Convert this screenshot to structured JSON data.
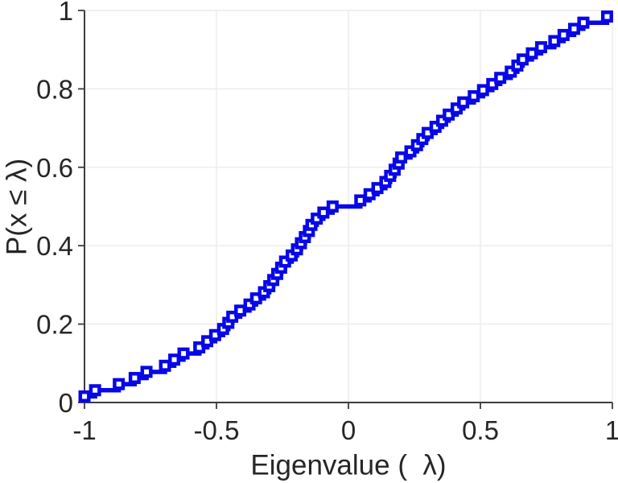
{
  "figure": {
    "background": "#ffffff"
  },
  "style": {
    "line_color": "#0707e8",
    "marker_face_color": "#ffffff",
    "grid_color": "#ebebeb",
    "axis_color": "#3c3c3c",
    "label_color": "#262626"
  },
  "chart_data": {
    "type": "line",
    "subtype": "empirical-cdf-stairs",
    "title": "",
    "xlabel": "Eigenvalue (  λ)",
    "ylabel": "P(x ≤ λ)",
    "xlim": [
      -1,
      1
    ],
    "ylim": [
      0,
      1
    ],
    "grid": true,
    "legend": "none",
    "xticks": {
      "values": [
        -1,
        -0.5,
        0,
        0.5,
        1
      ],
      "labels": [
        "-1",
        "-0.5",
        "0",
        "0.5",
        "1"
      ]
    },
    "yticks": {
      "values": [
        0,
        0.2,
        0.4,
        0.6,
        0.8,
        1
      ],
      "labels": [
        "0",
        "0.2",
        "0.4",
        "0.6",
        "0.8",
        "1"
      ]
    },
    "series": [
      {
        "name": "eigenvalue-ecdf",
        "style": "stairs",
        "marker": "open-square",
        "color": "#0707e8",
        "points": [
          [
            -1.0,
            0.0156
          ],
          [
            -0.96,
            0.0313
          ],
          [
            -0.87,
            0.0469
          ],
          [
            -0.81,
            0.0625
          ],
          [
            -0.765,
            0.0781
          ],
          [
            -0.695,
            0.0938
          ],
          [
            -0.66,
            0.1094
          ],
          [
            -0.625,
            0.125
          ],
          [
            -0.565,
            0.1406
          ],
          [
            -0.535,
            0.1563
          ],
          [
            -0.505,
            0.1719
          ],
          [
            -0.475,
            0.1875
          ],
          [
            -0.455,
            0.2031
          ],
          [
            -0.44,
            0.2188
          ],
          [
            -0.41,
            0.2344
          ],
          [
            -0.375,
            0.25
          ],
          [
            -0.35,
            0.2656
          ],
          [
            -0.32,
            0.2813
          ],
          [
            -0.3,
            0.2969
          ],
          [
            -0.285,
            0.3125
          ],
          [
            -0.27,
            0.3281
          ],
          [
            -0.255,
            0.3438
          ],
          [
            -0.24,
            0.3594
          ],
          [
            -0.215,
            0.375
          ],
          [
            -0.195,
            0.3906
          ],
          [
            -0.18,
            0.4063
          ],
          [
            -0.165,
            0.4219
          ],
          [
            -0.15,
            0.4375
          ],
          [
            -0.14,
            0.4531
          ],
          [
            -0.12,
            0.4688
          ],
          [
            -0.095,
            0.4844
          ],
          [
            -0.06,
            0.5
          ],
          [
            0.045,
            0.5156
          ],
          [
            0.08,
            0.5313
          ],
          [
            0.11,
            0.5469
          ],
          [
            0.14,
            0.5625
          ],
          [
            0.158,
            0.5781
          ],
          [
            0.175,
            0.5938
          ],
          [
            0.19,
            0.6094
          ],
          [
            0.2,
            0.625
          ],
          [
            0.235,
            0.6406
          ],
          [
            0.26,
            0.6563
          ],
          [
            0.28,
            0.6719
          ],
          [
            0.3,
            0.6875
          ],
          [
            0.33,
            0.7031
          ],
          [
            0.355,
            0.7188
          ],
          [
            0.38,
            0.7344
          ],
          [
            0.41,
            0.75
          ],
          [
            0.435,
            0.7656
          ],
          [
            0.475,
            0.7813
          ],
          [
            0.51,
            0.7969
          ],
          [
            0.545,
            0.8125
          ],
          [
            0.575,
            0.8281
          ],
          [
            0.615,
            0.8438
          ],
          [
            0.64,
            0.8594
          ],
          [
            0.66,
            0.875
          ],
          [
            0.695,
            0.8906
          ],
          [
            0.73,
            0.9063
          ],
          [
            0.78,
            0.9219
          ],
          [
            0.815,
            0.9375
          ],
          [
            0.855,
            0.9531
          ],
          [
            0.89,
            0.9688
          ],
          [
            0.98,
            0.9844
          ]
        ]
      }
    ]
  }
}
